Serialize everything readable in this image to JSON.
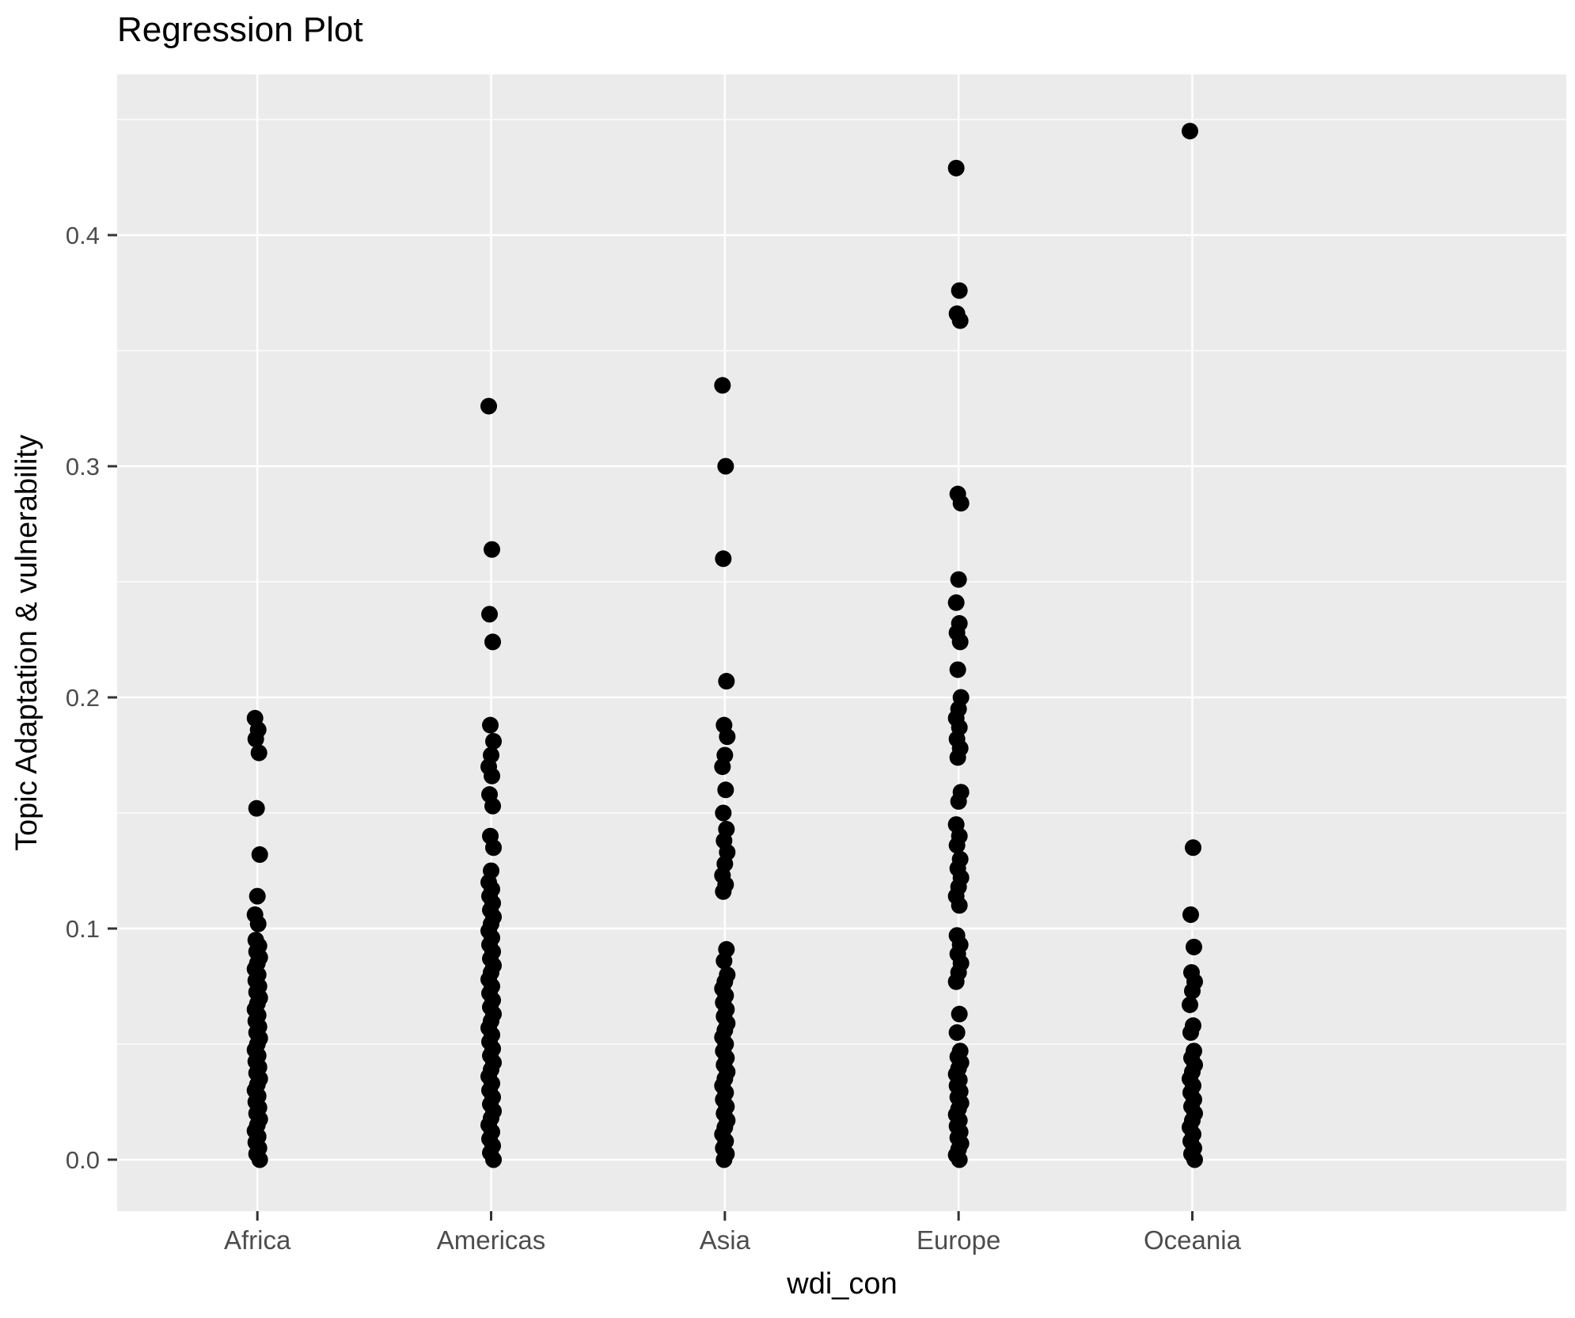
{
  "title": "Regression Plot",
  "axes": {
    "x": {
      "label": "wdi_con",
      "categories": [
        "Africa",
        "Americas",
        "Asia",
        "Europe",
        "Oceania"
      ]
    },
    "y": {
      "label": "Topic Adaptation & vulnerability",
      "tick_values": [
        0.0,
        0.1,
        0.2,
        0.3,
        0.4
      ],
      "tick_labels": [
        "0.0",
        "0.1",
        "0.2",
        "0.3",
        "0.4"
      ],
      "minor_tick_values": [
        0.05,
        0.15,
        0.25,
        0.35,
        0.45
      ],
      "range": [
        -0.022,
        0.47
      ]
    }
  },
  "style": {
    "background": "#ffffff",
    "panel_background": "#ebebeb",
    "grid_color": "#ffffff",
    "point_color": "#000000",
    "axis_text_color": "#4d4d4d",
    "tick_mark_color": "#333333",
    "title_color": "#000000",
    "axis_title_color": "#000000"
  },
  "chart_data": {
    "type": "scatter",
    "title": "Regression Plot",
    "xlabel": "wdi_con",
    "ylabel": "Topic Adaptation & vulnerability",
    "categories": [
      "Africa",
      "Americas",
      "Asia",
      "Europe",
      "Oceania"
    ],
    "ylim": [
      -0.022,
      0.47
    ],
    "grid": true,
    "legend": false,
    "series": [
      {
        "name": "Africa",
        "values": [
          0.191,
          0.186,
          0.182,
          0.176,
          0.152,
          0.132,
          0.114,
          0.106,
          0.102,
          0.095,
          0.0925,
          0.09,
          0.0875,
          0.085,
          0.0825,
          0.08,
          0.0775,
          0.075,
          0.0725,
          0.07,
          0.0675,
          0.065,
          0.0625,
          0.06,
          0.0575,
          0.055,
          0.0525,
          0.05,
          0.0475,
          0.045,
          0.0425,
          0.04,
          0.0375,
          0.035,
          0.0325,
          0.03,
          0.0275,
          0.025,
          0.0225,
          0.02,
          0.0175,
          0.015,
          0.0125,
          0.01,
          0.0075,
          0.005,
          0.0025,
          0.0
        ]
      },
      {
        "name": "Americas",
        "values": [
          0.326,
          0.264,
          0.236,
          0.224,
          0.188,
          0.181,
          0.175,
          0.17,
          0.166,
          0.158,
          0.153,
          0.14,
          0.135,
          0.125,
          0.12,
          0.117,
          0.114,
          0.111,
          0.108,
          0.105,
          0.102,
          0.099,
          0.096,
          0.093,
          0.09,
          0.087,
          0.084,
          0.081,
          0.078,
          0.075,
          0.072,
          0.069,
          0.066,
          0.063,
          0.06,
          0.057,
          0.054,
          0.051,
          0.048,
          0.045,
          0.042,
          0.039,
          0.036,
          0.033,
          0.03,
          0.027,
          0.024,
          0.021,
          0.018,
          0.015,
          0.012,
          0.009,
          0.006,
          0.003,
          0.0
        ]
      },
      {
        "name": "Asia",
        "values": [
          0.335,
          0.3,
          0.26,
          0.207,
          0.188,
          0.183,
          0.175,
          0.17,
          0.16,
          0.15,
          0.143,
          0.138,
          0.133,
          0.128,
          0.123,
          0.119,
          0.116,
          0.091,
          0.086,
          0.08,
          0.077,
          0.074,
          0.071,
          0.068,
          0.065,
          0.062,
          0.059,
          0.056,
          0.053,
          0.05,
          0.047,
          0.044,
          0.041,
          0.038,
          0.035,
          0.032,
          0.029,
          0.026,
          0.023,
          0.02,
          0.017,
          0.014,
          0.011,
          0.008,
          0.005,
          0.0025,
          0.0
        ]
      },
      {
        "name": "Europe",
        "values": [
          0.429,
          0.376,
          0.366,
          0.363,
          0.288,
          0.284,
          0.251,
          0.241,
          0.232,
          0.228,
          0.224,
          0.212,
          0.2,
          0.195,
          0.191,
          0.187,
          0.182,
          0.178,
          0.174,
          0.159,
          0.155,
          0.145,
          0.14,
          0.136,
          0.13,
          0.126,
          0.122,
          0.118,
          0.114,
          0.11,
          0.097,
          0.093,
          0.089,
          0.085,
          0.081,
          0.077,
          0.063,
          0.055,
          0.047,
          0.0445,
          0.042,
          0.0395,
          0.037,
          0.0345,
          0.032,
          0.0295,
          0.027,
          0.0245,
          0.022,
          0.0195,
          0.017,
          0.0145,
          0.012,
          0.0095,
          0.007,
          0.0045,
          0.002,
          0.0
        ]
      },
      {
        "name": "Oceania",
        "values": [
          0.445,
          0.135,
          0.106,
          0.092,
          0.081,
          0.077,
          0.073,
          0.067,
          0.058,
          0.055,
          0.047,
          0.044,
          0.041,
          0.038,
          0.035,
          0.032,
          0.029,
          0.026,
          0.023,
          0.02,
          0.017,
          0.014,
          0.011,
          0.008,
          0.005,
          0.0025,
          0.0
        ]
      }
    ]
  }
}
